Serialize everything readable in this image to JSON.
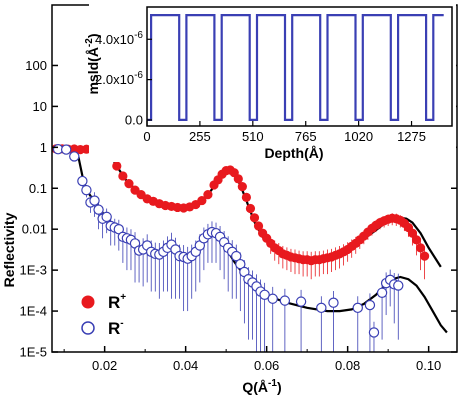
{
  "chart_data": [
    {
      "type": "scatter",
      "panel": "main",
      "xlabel": "Q(Å",
      "xlabel_sup": "-1",
      "xlabel_tail": ")",
      "ylabel": "Reflectivity",
      "xlim": [
        0.007,
        0.107
      ],
      "ylim": [
        1e-05,
        3000
      ],
      "yscale": "log",
      "x_ticks": [
        0.02,
        0.04,
        0.06,
        0.08,
        0.1
      ],
      "x_tick_labels": [
        "0.02",
        "0.04",
        "0.06",
        "0.08",
        "0.10"
      ],
      "y_ticks": [
        1e-05,
        0.0001,
        0.001,
        0.01,
        0.1,
        1,
        10,
        100
      ],
      "y_tick_labels": [
        "1E-5",
        "1E-4",
        "1E-3",
        "0.01",
        "0.1",
        "1",
        "10",
        "100"
      ],
      "legend": {
        "placement": "bottom-left",
        "entries": [
          "R",
          "R"
        ],
        "sups": [
          "+",
          "-"
        ]
      },
      "series": [
        {
          "name": "R+",
          "marker": "filled-circle",
          "color": "#e8191e",
          "x": [
            0.008,
            0.0095,
            0.011,
            0.0125,
            0.014,
            0.0155,
            0.017,
            0.0185,
            0.02,
            0.0215,
            0.023,
            0.0245,
            0.026,
            0.0275,
            0.029,
            0.0305,
            0.032,
            0.0335,
            0.035,
            0.0365,
            0.038,
            0.0395,
            0.041,
            0.0425,
            0.044,
            0.0455,
            0.047,
            0.048,
            0.049,
            0.05,
            0.051,
            0.052,
            0.053,
            0.054,
            0.055,
            0.056,
            0.057,
            0.058,
            0.059,
            0.06,
            0.061,
            0.062,
            0.063,
            0.064,
            0.065,
            0.066,
            0.067,
            0.068,
            0.069,
            0.07,
            0.071,
            0.072,
            0.073,
            0.074,
            0.075,
            0.076,
            0.077,
            0.078,
            0.079,
            0.08,
            0.081,
            0.082,
            0.083,
            0.084,
            0.085,
            0.086,
            0.087,
            0.088,
            0.089,
            0.09,
            0.091,
            0.092,
            0.093,
            0.094,
            0.095,
            0.096,
            0.097,
            0.098,
            0.099
          ],
          "y": [
            0.92,
            0.92,
            0.9,
            0.91,
            0.88,
            0.9,
            0.88,
            0.85,
            0.8,
            0.6,
            0.35,
            0.2,
            0.13,
            0.09,
            0.07,
            0.055,
            0.048,
            0.042,
            0.038,
            0.036,
            0.034,
            0.033,
            0.035,
            0.04,
            0.05,
            0.07,
            0.12,
            0.16,
            0.22,
            0.27,
            0.28,
            0.24,
            0.17,
            0.11,
            0.06,
            0.032,
            0.019,
            0.012,
            0.008,
            0.006,
            0.0045,
            0.0035,
            0.003,
            0.0025,
            0.0023,
            0.0021,
            0.002,
            0.0019,
            0.0018,
            0.0018,
            0.0017,
            0.0018,
            0.0018,
            0.0019,
            0.002,
            0.0021,
            0.0023,
            0.0025,
            0.0028,
            0.0032,
            0.0038,
            0.0045,
            0.0055,
            0.0068,
            0.0085,
            0.0105,
            0.0125,
            0.0145,
            0.016,
            0.0175,
            0.0185,
            0.018,
            0.0165,
            0.014,
            0.011,
            0.008,
            0.0055,
            0.0035,
            0.0022
          ],
          "error": [
            0,
            0,
            0,
            0,
            0,
            0,
            0,
            0,
            0,
            0,
            0,
            0,
            0,
            0,
            0,
            0,
            0,
            0,
            0,
            0,
            0,
            0,
            0,
            0,
            0,
            0,
            0,
            0,
            0,
            0,
            0,
            0,
            0,
            0,
            0,
            0,
            0,
            0,
            0,
            0,
            0.002,
            0.0018,
            0.0016,
            0.0014,
            0.0013,
            0.0012,
            0.0012,
            0.0011,
            0.0011,
            0.0011,
            0.0011,
            0.0011,
            0.0011,
            0.0011,
            0.0012,
            0.0012,
            0.0013,
            0.0014,
            0.0015,
            0.0016,
            0.0018,
            0.002,
            0.0022,
            0.0025,
            0.003,
            0.0035,
            0.004,
            0.0045,
            0.005,
            0.0055,
            0.006,
            0.006,
            0.0055,
            0.005,
            0.0045,
            0.004,
            0.0032,
            0.0025,
            0.0016
          ]
        },
        {
          "name": "R-",
          "marker": "open-circle",
          "color": "#3a3fb4",
          "x": [
            0.0085,
            0.0105,
            0.0125,
            0.0145,
            0.0155,
            0.0165,
            0.0175,
            0.0185,
            0.0195,
            0.0205,
            0.0215,
            0.0225,
            0.0235,
            0.0245,
            0.0255,
            0.0265,
            0.0275,
            0.0285,
            0.0295,
            0.0305,
            0.0315,
            0.0325,
            0.0335,
            0.0345,
            0.0355,
            0.0365,
            0.0375,
            0.0385,
            0.0395,
            0.0405,
            0.0415,
            0.0425,
            0.0435,
            0.0445,
            0.0455,
            0.0465,
            0.0475,
            0.0485,
            0.0495,
            0.0505,
            0.0515,
            0.0525,
            0.0535,
            0.0545,
            0.0555,
            0.0565,
            0.0575,
            0.0585,
            0.0595,
            0.0615,
            0.0645,
            0.0685,
            0.0735,
            0.0765,
            0.0825,
            0.0855,
            0.0865,
            0.0885,
            0.0895,
            0.0905,
            0.0915,
            0.0925
          ],
          "y": [
            0.9,
            0.88,
            0.6,
            0.15,
            0.09,
            0.045,
            0.05,
            0.03,
            0.018,
            0.02,
            0.012,
            0.011,
            0.01,
            0.0065,
            0.006,
            0.0055,
            0.0045,
            0.003,
            0.0032,
            0.004,
            0.0028,
            0.0025,
            0.0024,
            0.0028,
            0.0035,
            0.0042,
            0.0032,
            0.0022,
            0.0021,
            0.0019,
            0.0022,
            0.0028,
            0.004,
            0.006,
            0.0075,
            0.0085,
            0.008,
            0.0065,
            0.0048,
            0.0035,
            0.0028,
            0.0022,
            0.0014,
            0.0009,
            0.0006,
            0.0005,
            0.0004,
            0.0003,
            0.00025,
            0.0002,
            0.00018,
            0.00017,
            0.00012,
            0.00016,
            0.00012,
            0.00014,
            3e-05,
            0.00028,
            0.00048,
            0.00058,
            0.00045,
            0.00042
          ],
          "error": [
            0.05,
            0.06,
            0.08,
            0.04,
            0.03,
            0.02,
            0.03,
            0.02,
            0.012,
            0.012,
            0.008,
            0.007,
            0.007,
            0.005,
            0.005,
            0.0045,
            0.004,
            0.0025,
            0.0028,
            0.0035,
            0.0025,
            0.0022,
            0.0022,
            0.0025,
            0.0032,
            0.004,
            0.003,
            0.002,
            0.002,
            0.0018,
            0.002,
            0.0025,
            0.0035,
            0.005,
            0.006,
            0.007,
            0.0065,
            0.0055,
            0.0042,
            0.0032,
            0.0026,
            0.002,
            0.0013,
            0.00085,
            0.00058,
            0.00048,
            0.00039,
            0.00029,
            0.00024,
            0.00019,
            0.00017,
            0.00016,
            0.00011,
            0.00015,
            0.00011,
            0.00013,
            2.5e-05,
            0.00026,
            0.0004,
            0.00045,
            0.0004,
            0.0004
          ]
        },
        {
          "name": "R+ fit",
          "marker": "line",
          "color": "#000000",
          "x": [
            0.008,
            0.012,
            0.016,
            0.019,
            0.021,
            0.023,
            0.025,
            0.028,
            0.031,
            0.034,
            0.037,
            0.04,
            0.043,
            0.045,
            0.047,
            0.049,
            0.0505,
            0.052,
            0.0535,
            0.055,
            0.057,
            0.059,
            0.062,
            0.066,
            0.07,
            0.074,
            0.078,
            0.081,
            0.084,
            0.087,
            0.089,
            0.091,
            0.093,
            0.0945,
            0.096,
            0.098,
            0.1,
            0.103
          ],
          "y": [
            0.95,
            0.95,
            0.94,
            0.92,
            0.75,
            0.35,
            0.17,
            0.085,
            0.055,
            0.042,
            0.036,
            0.034,
            0.042,
            0.06,
            0.11,
            0.2,
            0.27,
            0.23,
            0.12,
            0.05,
            0.015,
            0.0065,
            0.0035,
            0.0022,
            0.0018,
            0.0018,
            0.0024,
            0.0035,
            0.0058,
            0.0095,
            0.0135,
            0.0172,
            0.019,
            0.018,
            0.0145,
            0.008,
            0.0035,
            0.0012
          ]
        },
        {
          "name": "R- fit",
          "marker": "line",
          "color": "#000000",
          "x": [
            0.008,
            0.012,
            0.0135,
            0.0145,
            0.0155,
            0.0165,
            0.0175,
            0.0185,
            0.0195,
            0.0205,
            0.0215,
            0.0225,
            0.0235,
            0.0245,
            0.0255,
            0.0265,
            0.0275,
            0.0285,
            0.0295,
            0.0305,
            0.0315,
            0.0325,
            0.0335,
            0.0345,
            0.0355,
            0.0365,
            0.0375,
            0.0385,
            0.0395,
            0.0405,
            0.0415,
            0.0425,
            0.0435,
            0.0445,
            0.0455,
            0.0465,
            0.0475,
            0.0485,
            0.0495,
            0.0505,
            0.052,
            0.054,
            0.056,
            0.058,
            0.061,
            0.065,
            0.07,
            0.075,
            0.078,
            0.081,
            0.084,
            0.087,
            0.089,
            0.091,
            0.093,
            0.095,
            0.097,
            0.099,
            0.101,
            0.103,
            0.1045
          ],
          "y": [
            0.92,
            0.9,
            0.6,
            0.2,
            0.09,
            0.065,
            0.045,
            0.038,
            0.025,
            0.02,
            0.015,
            0.013,
            0.0095,
            0.0078,
            0.0068,
            0.0056,
            0.0042,
            0.0036,
            0.0033,
            0.0034,
            0.0028,
            0.0025,
            0.0024,
            0.0028,
            0.0036,
            0.0038,
            0.0031,
            0.0024,
            0.0021,
            0.002,
            0.0022,
            0.0028,
            0.0042,
            0.0065,
            0.0085,
            0.009,
            0.0082,
            0.0062,
            0.0042,
            0.0028,
            0.0016,
            0.00085,
            0.0005,
            0.00033,
            0.00022,
            0.00016,
            0.00012,
            0.0001,
            0.0001,
            0.00011,
            0.00015,
            0.00025,
            0.0004,
            0.0006,
            0.00068,
            0.0006,
            0.00042,
            0.00022,
            0.0001,
            4.5e-05,
            3e-05
          ]
        }
      ]
    },
    {
      "type": "line",
      "panel": "inset",
      "xlabel": "Depth(Å)",
      "ylabel": "msld(Å",
      "ylabel_sup": "-2",
      "ylabel_tail": ")",
      "xlim": [
        0,
        1470
      ],
      "ylim": [
        -3e-07,
        5.6e-06
      ],
      "x_ticks": [
        0,
        255,
        510,
        765,
        1020,
        1275
      ],
      "x_tick_labels": [
        "0",
        "255",
        "510",
        "765",
        "1020",
        "1275"
      ],
      "y_ticks": [
        0,
        2e-06,
        4e-06
      ],
      "y_tick_labels": [
        "0.0",
        "2.0x10",
        "4.0x10"
      ],
      "y_tick_sups": [
        "",
        "-6",
        "-6"
      ],
      "series": [
        {
          "name": "msld profile",
          "color": "#3a3fb4",
          "x": [
            0,
            20,
            20,
            155,
            155,
            190,
            190,
            325,
            325,
            360,
            360,
            495,
            495,
            530,
            530,
            665,
            665,
            700,
            700,
            835,
            835,
            870,
            870,
            1005,
            1005,
            1040,
            1040,
            1175,
            1175,
            1210,
            1210,
            1345,
            1345,
            1380,
            1380,
            1430
          ],
          "y": [
            0,
            0,
            5.2e-06,
            5.2e-06,
            0,
            0,
            5.2e-06,
            5.2e-06,
            0,
            0,
            5.2e-06,
            5.2e-06,
            0,
            0,
            5.2e-06,
            5.2e-06,
            0,
            0,
            5.2e-06,
            5.2e-06,
            0,
            0,
            5.2e-06,
            5.2e-06,
            0,
            0,
            5.2e-06,
            5.2e-06,
            0,
            0,
            5.2e-06,
            5.2e-06,
            0,
            0,
            5.2e-06,
            5.2e-06
          ]
        }
      ]
    }
  ]
}
